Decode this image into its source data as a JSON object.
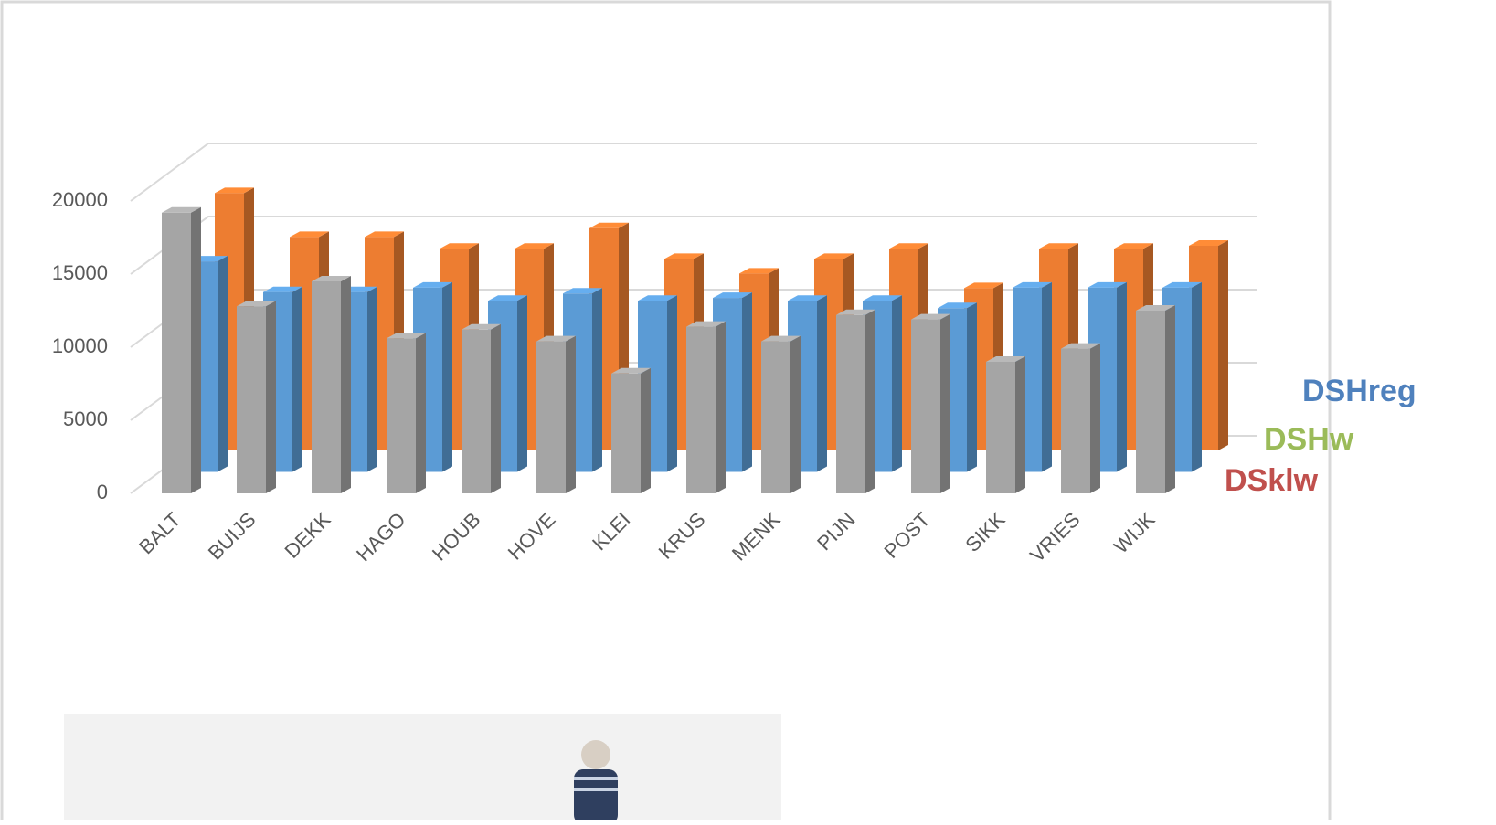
{
  "chart_data": {
    "type": "bar3d",
    "categories": [
      "BALT",
      "BUIJS",
      "DEKK",
      "HAGO",
      "HOUB",
      "HOVE",
      "KLEI",
      "KRUS",
      "MENK",
      "PIJN",
      "POST",
      "SIKK",
      "VRIES",
      "WIJK"
    ],
    "series": [
      {
        "name": "DSHreg",
        "color": "#a5a5a5",
        "label_color": "#4f81bd",
        "values": [
          19200,
          12800,
          14500,
          10600,
          11200,
          10400,
          8200,
          11400,
          10400,
          12200,
          11900,
          9000,
          9900,
          12500
        ]
      },
      {
        "name": "DSHw",
        "color": "#5b9bd5",
        "label_color": "#9bbb59",
        "values": [
          14400,
          12300,
          12300,
          12600,
          11700,
          12200,
          11700,
          11900,
          11700,
          11700,
          11200,
          12600,
          12600,
          12600
        ]
      },
      {
        "name": "DSklw",
        "color": "#ed7d31",
        "label_color": "#c0504d",
        "values": [
          17600,
          14600,
          14600,
          13800,
          13800,
          15200,
          13100,
          12100,
          13100,
          13800,
          11100,
          13800,
          13800,
          14000
        ]
      }
    ],
    "ylim": [
      0,
      20000
    ],
    "yticks": [
      0,
      5000,
      10000,
      15000,
      20000
    ],
    "grid": true
  }
}
